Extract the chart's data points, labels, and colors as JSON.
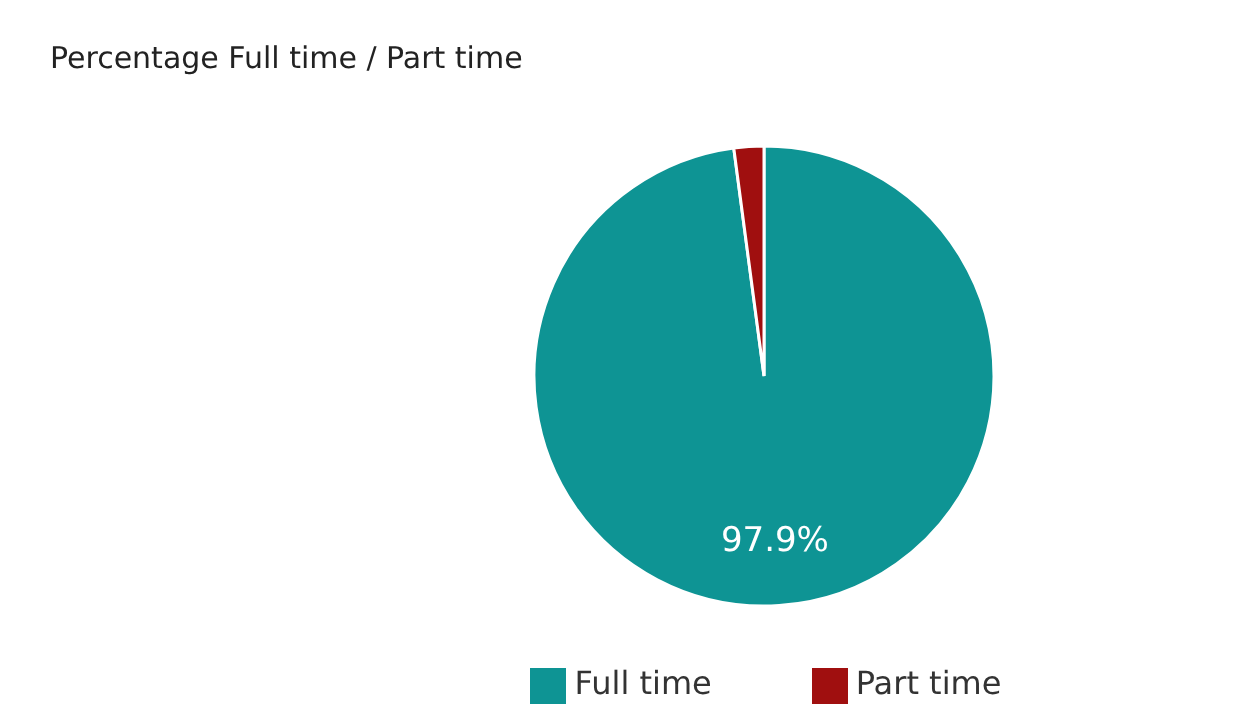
{
  "chart_data": {
    "type": "pie",
    "title": "Percentage Full time / Part time",
    "categories": [
      "Full time",
      "Part time"
    ],
    "values": [
      97.9,
      2.1
    ],
    "colors": [
      "#0e9494",
      "#a00f0f"
    ],
    "value_labels": [
      "97.9%",
      null
    ],
    "legend": "bottom"
  }
}
